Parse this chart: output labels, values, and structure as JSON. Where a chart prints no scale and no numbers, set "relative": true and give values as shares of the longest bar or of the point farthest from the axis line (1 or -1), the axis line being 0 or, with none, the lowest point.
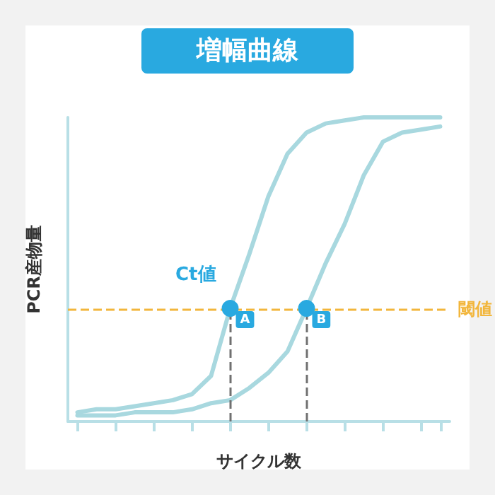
{
  "chart_data": {
    "type": "line",
    "title": "増幅曲線",
    "xlabel": "サイクル数",
    "ylabel": "PCR産物量",
    "relative": true,
    "grid": false,
    "marker": "none",
    "categories": [
      null,
      null,
      null,
      null,
      null,
      null,
      null,
      null,
      null,
      null,
      null,
      null,
      null,
      null,
      null,
      null,
      null,
      null,
      null,
      null
    ],
    "series": [
      {
        "color": "#a8d8df",
        "values": [
          0.03,
          0.04,
          0.04,
          0.05,
          0.06,
          0.07,
          0.09,
          0.15,
          0.372,
          0.55,
          0.74,
          0.88,
          0.95,
          0.98,
          0.99,
          1,
          1,
          1,
          1,
          1
        ]
      },
      {
        "color": "#a8d8df",
        "values": [
          0.02,
          0.02,
          0.02,
          0.03,
          0.03,
          0.03,
          0.04,
          0.06,
          0.07,
          0.11,
          0.16,
          0.23,
          0.372,
          0.52,
          0.65,
          0.81,
          0.92,
          0.95,
          0.96,
          0.97
        ]
      }
    ],
    "ref_lines": [
      {
        "axis": "y",
        "value": 0.372,
        "label": "閾値",
        "color": "#f2b63c",
        "line_style": "dashed"
      }
    ],
    "annotations": [
      "Ct値",
      {
        "text": "A",
        "y": 0.372
      },
      {
        "text": "B",
        "y": 0.372
      }
    ]
  }
}
